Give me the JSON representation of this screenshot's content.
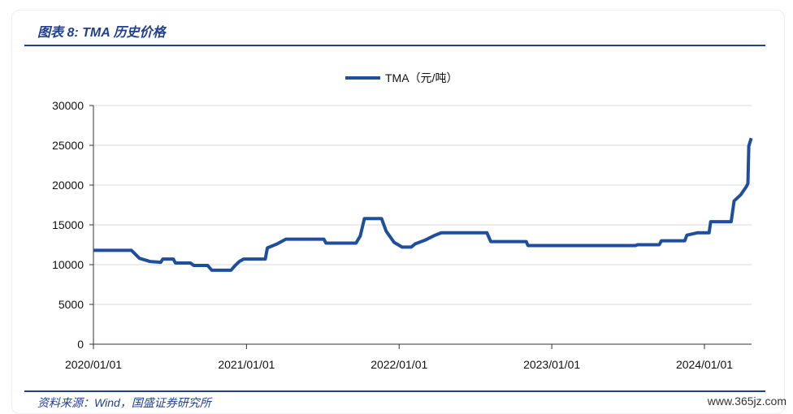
{
  "header": {
    "title": "图表 8:  TMA 历史价格"
  },
  "footer": {
    "source": "资料来源：Wind，国盛证券研究所",
    "watermark": "www.365jz.com"
  },
  "chart_data": {
    "type": "line",
    "title": "",
    "xlabel": "",
    "ylabel": "",
    "ylim": [
      0,
      30000
    ],
    "yticks": [
      "0",
      "5000",
      "10000",
      "15000",
      "20000",
      "25000",
      "30000"
    ],
    "xticks": [
      "2020/01/01",
      "2021/01/01",
      "2022/01/01",
      "2023/01/01",
      "2024/01/01"
    ],
    "grid": "horizontal",
    "legend": "top-center",
    "colors": {
      "series": "#1f4e9c",
      "grid": "#d9d9d9",
      "accent": "#1f3f8f"
    },
    "series": [
      {
        "name": "TMA（元/吨）",
        "points": [
          [
            "2020-01-01",
            11800
          ],
          [
            "2020-04-01",
            11800
          ],
          [
            "2020-04-20",
            10800
          ],
          [
            "2020-05-15",
            10400
          ],
          [
            "2020-06-10",
            10300
          ],
          [
            "2020-06-15",
            10700
          ],
          [
            "2020-07-10",
            10700
          ],
          [
            "2020-07-15",
            10200
          ],
          [
            "2020-08-20",
            10200
          ],
          [
            "2020-08-28",
            9900
          ],
          [
            "2020-09-30",
            9900
          ],
          [
            "2020-10-10",
            9300
          ],
          [
            "2020-11-25",
            9300
          ],
          [
            "2020-12-05",
            9900
          ],
          [
            "2020-12-15",
            10400
          ],
          [
            "2020-12-25",
            10700
          ],
          [
            "2021-02-15",
            10700
          ],
          [
            "2021-02-20",
            12100
          ],
          [
            "2021-03-15",
            12600
          ],
          [
            "2021-04-05",
            13200
          ],
          [
            "2021-07-05",
            13200
          ],
          [
            "2021-07-10",
            12700
          ],
          [
            "2021-09-20",
            12700
          ],
          [
            "2021-09-30",
            13600
          ],
          [
            "2021-10-10",
            15800
          ],
          [
            "2021-11-20",
            15800
          ],
          [
            "2021-12-01",
            14200
          ],
          [
            "2021-12-20",
            12800
          ],
          [
            "2022-01-08",
            12200
          ],
          [
            "2022-01-30",
            12200
          ],
          [
            "2022-02-08",
            12600
          ],
          [
            "2022-03-05",
            13100
          ],
          [
            "2022-03-28",
            13700
          ],
          [
            "2022-04-12",
            14000
          ],
          [
            "2022-07-30",
            14000
          ],
          [
            "2022-08-08",
            12900
          ],
          [
            "2022-11-01",
            12900
          ],
          [
            "2022-11-05",
            12400
          ],
          [
            "2023-07-20",
            12400
          ],
          [
            "2023-07-25",
            12500
          ],
          [
            "2023-09-15",
            12500
          ],
          [
            "2023-09-20",
            13000
          ],
          [
            "2023-11-15",
            13000
          ],
          [
            "2023-11-20",
            13700
          ],
          [
            "2023-12-15",
            14000
          ],
          [
            "2024-01-12",
            14000
          ],
          [
            "2024-01-16",
            15400
          ],
          [
            "2024-03-05",
            15400
          ],
          [
            "2024-03-12",
            18000
          ],
          [
            "2024-03-28",
            18800
          ],
          [
            "2024-04-10",
            19800
          ],
          [
            "2024-04-14",
            20200
          ],
          [
            "2024-04-16",
            24900
          ],
          [
            "2024-04-22",
            25900
          ]
        ]
      }
    ]
  }
}
